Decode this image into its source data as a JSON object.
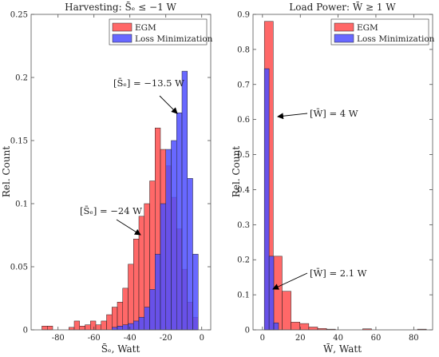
{
  "chart_data": [
    {
      "type": "bar",
      "title": "Harvesting: S̄ₑ ≤ −1 W",
      "xlabel": "S̄ₑ, Watt",
      "ylabel": "Rel. Count",
      "xlim": [
        -95,
        5
      ],
      "ylim": [
        0,
        0.25
      ],
      "xticks": [
        -80,
        -60,
        -40,
        -20,
        0
      ],
      "yticks": [
        0,
        0.05,
        0.1,
        0.15,
        0.2,
        0.25
      ],
      "xtick_labels": [
        "-80",
        "-60",
        "-40",
        "-20",
        "0"
      ],
      "ytick_labels": [
        "0",
        "0.05",
        "0.1",
        "0.15",
        "0.2",
        "0.25"
      ],
      "legend_position": "top-right",
      "series": [
        {
          "name": "EGM",
          "color": "#ff4d4d",
          "bin_width": 3,
          "bins_start": [
            -89,
            -86,
            -74,
            -71,
            -68,
            -65,
            -62,
            -59,
            -56,
            -53,
            -50,
            -47,
            -44,
            -41,
            -38,
            -35,
            -32,
            -29,
            -26,
            -23,
            -20,
            -17,
            -14,
            -11,
            -8,
            -5
          ],
          "values": [
            0.003,
            0.003,
            0.002,
            0.007,
            0.003,
            0.004,
            0.007,
            0.004,
            0.007,
            0.012,
            0.018,
            0.022,
            0.033,
            0.052,
            0.072,
            0.09,
            0.1,
            0.118,
            0.16,
            0.143,
            0.13,
            0.105,
            0.08,
            0.048,
            0.022,
            0.01
          ]
        },
        {
          "name": "Loss Minimization",
          "color": "#4d4dff",
          "bin_width": 3,
          "bins_start": [
            -50,
            -47,
            -44,
            -41,
            -38,
            -35,
            -32,
            -29,
            -26,
            -23,
            -20,
            -17,
            -14,
            -11,
            -8,
            -5
          ],
          "values": [
            0.002,
            0.003,
            0.004,
            0.005,
            0.007,
            0.01,
            0.018,
            0.032,
            0.06,
            0.1,
            0.143,
            0.15,
            0.172,
            0.205,
            0.12,
            0.06
          ]
        }
      ],
      "annotations": [
        {
          "text": "[S̄ₑ] = −24 W",
          "x": -24
        },
        {
          "text": "[S̄ₑ] = −13.5 W",
          "x": -13.5
        }
      ]
    },
    {
      "type": "bar",
      "title": "Load Power: W̄ ≥ 1 W",
      "xlabel": "W̄, Watt",
      "ylabel": "Rel. Count",
      "xlim": [
        -5,
        90
      ],
      "ylim": [
        0,
        0.9
      ],
      "xticks": [
        0,
        20,
        40,
        60,
        80
      ],
      "yticks": [
        0,
        0.1,
        0.2,
        0.3,
        0.4,
        0.5,
        0.6,
        0.7,
        0.8,
        0.9
      ],
      "xtick_labels": [
        "0",
        "20",
        "40",
        "60",
        "80"
      ],
      "ytick_labels": [
        "0",
        "0.1",
        "0.2",
        "0.3",
        "0.4",
        "0.5",
        "0.6",
        "0.7",
        "0.8",
        "0.9"
      ],
      "legend_position": "top-right",
      "series": [
        {
          "name": "EGM",
          "color": "#ff4d4d",
          "bin_width": 4.7,
          "bins_start": [
            1,
            5.7,
            10.4,
            15.1,
            19.8,
            24.5,
            29.2,
            33.9,
            53,
            82
          ],
          "values": [
            0.88,
            0.21,
            0.11,
            0.022,
            0.018,
            0.008,
            0.004,
            0.002,
            0.003,
            0.002
          ]
        },
        {
          "name": "Loss Minimization",
          "color": "#4d4dff",
          "bin_width": 2.5,
          "bins_start": [
            1,
            3.5,
            6
          ],
          "values": [
            0.745,
            0.21,
            0.02
          ]
        }
      ],
      "annotations": [
        {
          "text": "[W̄] = 4 W",
          "x": 4
        },
        {
          "text": "[W̄] = 2.1 W",
          "x": 2.1
        }
      ]
    }
  ]
}
